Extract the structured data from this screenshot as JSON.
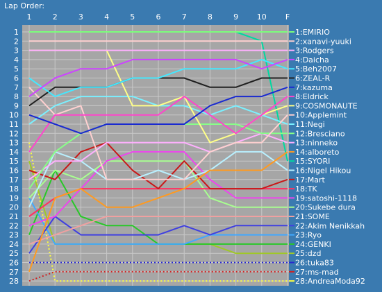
{
  "chart_data": {
    "type": "line",
    "title": "Lap Order:",
    "x_labels": [
      "1",
      "2",
      "3",
      "4",
      "5",
      "6",
      "7",
      "8",
      "9",
      "10",
      "F"
    ],
    "y_labels": [
      "1",
      "2",
      "3",
      "4",
      "5",
      "6",
      "7",
      "8",
      "9",
      "10",
      "11",
      "12",
      "13",
      "14",
      "15",
      "16",
      "17",
      "18",
      "19",
      "20",
      "21",
      "22",
      "23",
      "24",
      "25",
      "26",
      "27",
      "28"
    ],
    "ylim": [
      1,
      28
    ],
    "grid": true,
    "colors": {
      "background": "#3a7ab0",
      "plot_area": "#a6a6a6",
      "grid": "#c8c8c8",
      "text": "#ffffff"
    },
    "series": [
      {
        "name": "1:EMIRIO",
        "color": "#7aff7a",
        "values": [
          1,
          1,
          1,
          1,
          1,
          1,
          1,
          1,
          1,
          1,
          1
        ]
      },
      {
        "name": "2:xanavi-yuuki",
        "color": "#ffd0d0",
        "values": [
          2,
          2,
          2,
          2,
          2,
          2,
          2,
          2,
          2,
          2,
          2
        ]
      },
      {
        "name": "3:Rodgers",
        "color": "#ffb0ff",
        "values": [
          3,
          3,
          3,
          3,
          3,
          3,
          3,
          3,
          3,
          3,
          3
        ]
      },
      {
        "name": "4:Daicha",
        "color": "#cc44ff",
        "values": [
          8,
          6,
          5,
          5,
          4,
          4,
          4,
          4,
          4,
          5,
          4
        ]
      },
      {
        "name": "5:Beh2007",
        "color": "#44e8ff",
        "values": [
          6,
          8,
          7,
          7,
          6,
          6,
          5,
          5,
          5,
          4,
          5
        ]
      },
      {
        "name": "6:ZEAL-R",
        "color": "#202020",
        "values": [
          9,
          7,
          7,
          7,
          6,
          6,
          6,
          7,
          7,
          6,
          6
        ]
      },
      {
        "name": "7:kazuma",
        "color": "#1a2ad0",
        "values": [
          10,
          11,
          12,
          11,
          11,
          11,
          11,
          9,
          8,
          8,
          7
        ]
      },
      {
        "name": "8:Eldrick",
        "color": "#ff44cc",
        "values": [
          14,
          10,
          10,
          10,
          10,
          10,
          8,
          10,
          12,
          10,
          8
        ]
      },
      {
        "name": "9:COSMONAUTE",
        "color": "#ffff88",
        "values": [
          3,
          3,
          3,
          3,
          9,
          9,
          8,
          13,
          12,
          10,
          9
        ]
      },
      {
        "name": "10:Applemint",
        "color": "#ffd0d0",
        "values": [
          7,
          10,
          9,
          17,
          17,
          17,
          17,
          14,
          13,
          13,
          10
        ]
      },
      {
        "name": "11:Negi",
        "color": "#7af0ff",
        "values": [
          11,
          9,
          8,
          8,
          8,
          9,
          9,
          10,
          9,
          10,
          11
        ]
      },
      {
        "name": "12:Bresciano",
        "color": "#88ff88",
        "values": [
          18,
          14,
          12,
          11,
          11,
          11,
          11,
          11,
          11,
          12,
          12
        ]
      },
      {
        "name": "13:ninneko",
        "color": "#ffb0ff",
        "values": [
          17,
          15,
          15,
          13,
          13,
          13,
          13,
          14,
          13,
          12,
          13
        ]
      },
      {
        "name": "14:alboreto",
        "color": "#ff9a20",
        "values": [
          27,
          19,
          18,
          20,
          20,
          19,
          18,
          16,
          16,
          16,
          14
        ]
      },
      {
        "name": "15:SYORI",
        "color": "#00d8a0",
        "values": [
          1,
          1,
          1,
          1,
          1,
          1,
          1,
          1,
          1,
          2,
          15
        ]
      },
      {
        "name": "16:Nigel Hikou",
        "color": "#b8f0ff",
        "values": [
          20,
          14,
          15,
          17,
          17,
          16,
          17,
          16,
          14,
          14,
          16
        ]
      },
      {
        "name": "17:Mart",
        "color": "#c81818",
        "values": [
          16,
          17,
          14,
          13,
          16,
          18,
          15,
          18,
          18,
          18,
          17
        ]
      },
      {
        "name": "18:TK",
        "color": "#ff3060",
        "values": [
          21,
          19,
          18,
          18,
          18,
          18,
          18,
          18,
          18,
          18,
          18
        ]
      },
      {
        "name": "19:satoshi-1118",
        "color": "#ee44ee",
        "values": [
          22,
          21,
          18,
          15,
          14,
          14,
          14,
          17,
          19,
          19,
          19
        ]
      },
      {
        "name": "20:Sukebe dura",
        "color": "#a8ff90",
        "values": [
          19,
          16,
          17,
          15,
          15,
          15,
          15,
          19,
          20,
          20,
          20
        ]
      },
      {
        "name": "21:SOME",
        "color": "#f0a0a0",
        "values": [
          24,
          23,
          22,
          21,
          21,
          21,
          21,
          21,
          21,
          21,
          21
        ]
      },
      {
        "name": "22:Akim Nenikkah",
        "color": "#4040e0",
        "values": [
          25,
          21,
          23,
          23,
          23,
          23,
          22,
          23,
          22,
          22,
          22
        ]
      },
      {
        "name": "23:Ryo",
        "color": "#40a8ff",
        "values": [
          19,
          24,
          24,
          24,
          24,
          24,
          24,
          23,
          23,
          23,
          23
        ]
      },
      {
        "name": "24:GENKI",
        "color": "#28c828",
        "values": [
          23,
          16,
          21,
          22,
          22,
          24,
          24,
          24,
          24,
          24,
          24
        ]
      },
      {
        "name": "25:dzd",
        "color": "#a0c828",
        "values": [
          15,
          24,
          24,
          24,
          24,
          24,
          24,
          24,
          25,
          25,
          25
        ]
      },
      {
        "name": "26:tuka83",
        "color": "#2828d0",
        "values": [
          26,
          26,
          26,
          26,
          26,
          26,
          26,
          26,
          26,
          26,
          26
        ]
      },
      {
        "name": "27:ms-mad",
        "color": "#d02020",
        "values": [
          28,
          27,
          27,
          27,
          27,
          27,
          27,
          27,
          27,
          27,
          27
        ]
      },
      {
        "name": "28:AndreaModa92",
        "color": "#ffff40",
        "values": [
          13,
          28,
          28,
          28,
          28,
          28,
          28,
          28,
          28,
          28,
          28
        ]
      }
    ]
  }
}
